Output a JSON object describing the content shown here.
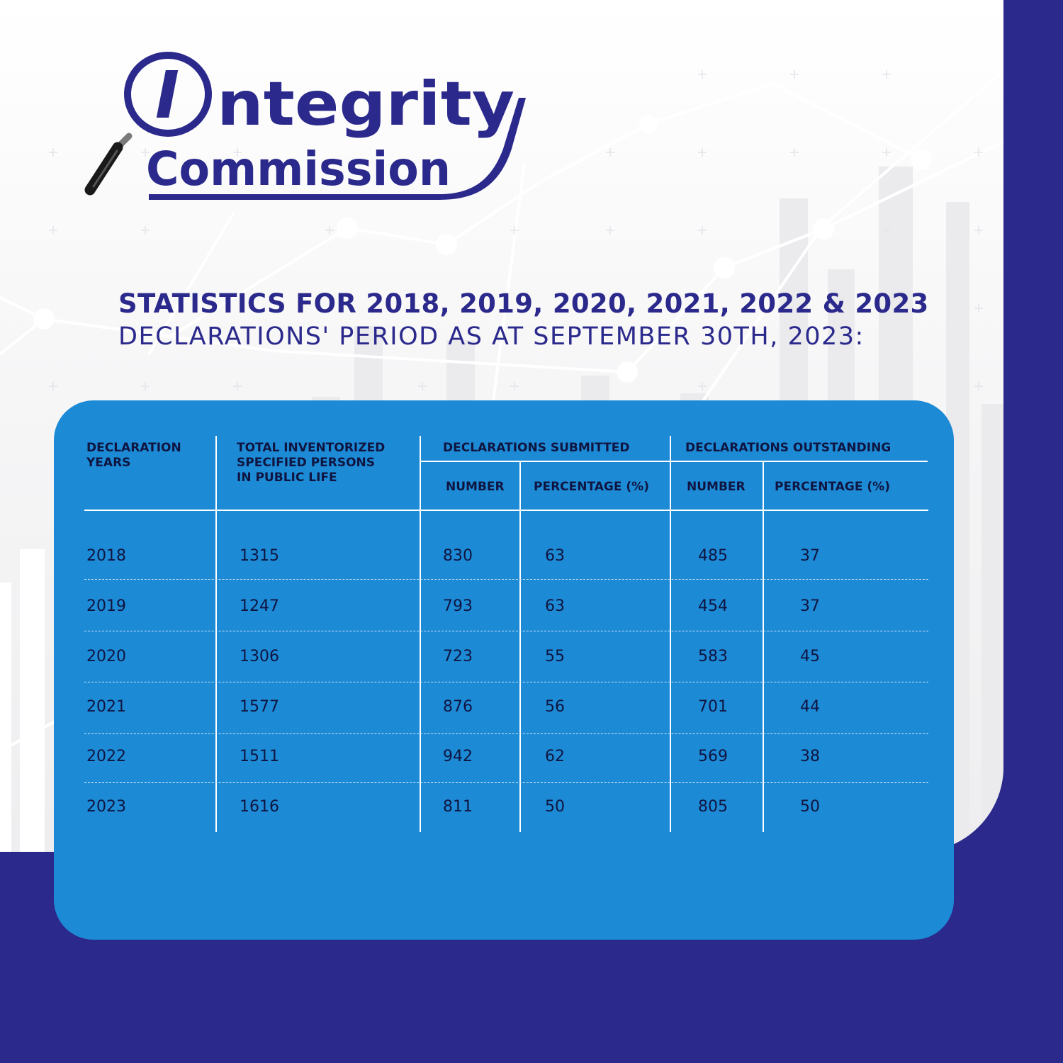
{
  "brand": {
    "logo_letter": "I",
    "logo_word_1": "ntegrity",
    "logo_word_2": "Commission"
  },
  "heading": {
    "line1": "STATISTICS FOR 2018, 2019, 2020, 2021, 2022 & 2023",
    "line2": "DECLARATIONS' PERIOD AS AT SEPTEMBER 30TH, 2023:"
  },
  "colors": {
    "navy": "#2b2a8c",
    "card_blue": "#1d8ad6",
    "text_dark": "#0f1540"
  },
  "table": {
    "headers": {
      "years": "DECLARATION\nYEARS",
      "total": "TOTAL INVENTORIZED\nSPECIFIED PERSONS\nIN PUBLIC LIFE",
      "submitted": "DECLARATIONS SUBMITTED",
      "outstanding": "DECLARATIONS OUTSTANDING",
      "sub_number": "NUMBER",
      "sub_percentage": "PERCENTAGE (%)",
      "out_number": "NUMBER",
      "out_percentage": "PERCENTAGE (%)"
    },
    "rows": [
      {
        "year": "2018",
        "total": "1315",
        "sub_num": "830",
        "sub_pct": "63",
        "out_num": "485",
        "out_pct": "37"
      },
      {
        "year": "2019",
        "total": "1247",
        "sub_num": "793",
        "sub_pct": "63",
        "out_num": "454",
        "out_pct": "37"
      },
      {
        "year": "2020",
        "total": "1306",
        "sub_num": "723",
        "sub_pct": "55",
        "out_num": "583",
        "out_pct": "45"
      },
      {
        "year": "2021",
        "total": "1577",
        "sub_num": "876",
        "sub_pct": "56",
        "out_num": "701",
        "out_pct": "44"
      },
      {
        "year": "2022",
        "total": "1511",
        "sub_num": "942",
        "sub_pct": "62",
        "out_num": "569",
        "out_pct": "38"
      },
      {
        "year": "2023",
        "total": "1616",
        "sub_num": "811",
        "sub_pct": "50",
        "out_num": "805",
        "out_pct": "50"
      }
    ]
  }
}
